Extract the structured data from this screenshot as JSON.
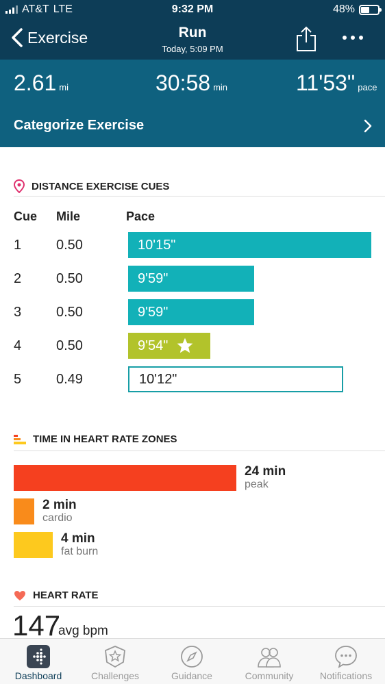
{
  "status_bar": {
    "carrier": "AT&T",
    "network": "LTE",
    "time": "9:32 PM",
    "battery_pct": "48%",
    "battery_level": 0.48
  },
  "nav": {
    "back_label": "Exercise",
    "title": "Run",
    "subtitle": "Today, 5:09 PM",
    "share_icon": "share-icon",
    "more_icon": "more-icon"
  },
  "summary": {
    "distance": "2.61",
    "distance_unit": "mi",
    "duration": "30:58",
    "duration_unit": "min",
    "pace": "11'53\"",
    "pace_unit": "pace",
    "categorize_label": "Categorize Exercise"
  },
  "cues": {
    "heading": "DISTANCE EXERCISE CUES",
    "col_cue": "Cue",
    "col_mile": "Mile",
    "col_pace": "Pace",
    "rows": [
      {
        "cue": "1",
        "mile": "0.50",
        "pace": "10'15\"",
        "style": "teal",
        "seconds": 615
      },
      {
        "cue": "2",
        "mile": "0.50",
        "pace": "9'59\"",
        "style": "teal",
        "seconds": 599
      },
      {
        "cue": "3",
        "mile": "0.50",
        "pace": "9'59\"",
        "style": "teal",
        "seconds": 599
      },
      {
        "cue": "4",
        "mile": "0.50",
        "pace": "9'54\"",
        "style": "best",
        "seconds": 594
      },
      {
        "cue": "5",
        "mile": "0.49",
        "pace": "10'12\"",
        "style": "outline",
        "seconds": 612
      }
    ]
  },
  "zones": {
    "heading": "TIME IN HEART RATE ZONES",
    "items": [
      {
        "value": "24 min",
        "label": "peak",
        "minutes": 24,
        "color": "#f5401f"
      },
      {
        "value": "2 min",
        "label": "cardio",
        "minutes": 2,
        "color": "#f98b1b"
      },
      {
        "value": "4 min",
        "label": "fat burn",
        "minutes": 4,
        "color": "#fdc91e"
      }
    ]
  },
  "heart_rate": {
    "heading": "HEART RATE",
    "value": "147",
    "unit": "avg bpm"
  },
  "colors": {
    "header_dark": "#0d3d57",
    "header_mid": "#0f617f",
    "teal": "#12b1b8",
    "best": "#b2c32b",
    "outline": "#179ea6"
  },
  "tabs": [
    {
      "label": "Dashboard",
      "icon": "dashboard-icon",
      "active": true
    },
    {
      "label": "Challenges",
      "icon": "challenges-icon",
      "active": false
    },
    {
      "label": "Guidance",
      "icon": "compass-icon",
      "active": false
    },
    {
      "label": "Community",
      "icon": "community-icon",
      "active": false
    },
    {
      "label": "Notifications",
      "icon": "notifications-icon",
      "active": false
    }
  ]
}
